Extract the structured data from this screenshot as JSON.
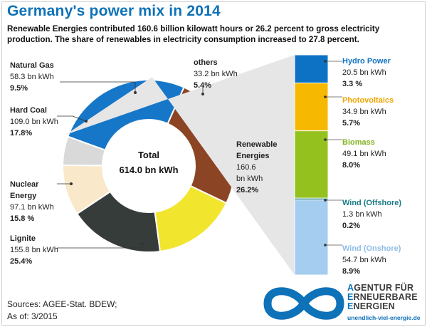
{
  "header": {
    "title": "Germany's power mix in 2014",
    "subtitle": "Renewable Energies contributed 160.6 billion kilowatt hours or 26.2 percent to gross electricity production. The share of renewables in electricity consumption increased to 27.8 percent."
  },
  "center": {
    "title": "Total",
    "value": "614.0 bn kWh"
  },
  "footer": {
    "sources": "Sources:  AGEE-Stat. BDEW;",
    "as_of": "As of: 3/2015"
  },
  "logo": {
    "line1_cap": "A",
    "line1": "GENTUR FÜR",
    "line2_cap": "E",
    "line2": "RNEUERBARE",
    "line3_cap": "E",
    "line3": "NERGIEN",
    "url": "unendlich-viel-energie.de"
  },
  "colors": {
    "title": "#0e72b8",
    "renewable": "#1677c9",
    "lignite": "#8b4424",
    "nuclear": "#f2e52e",
    "hard_coal": "#363c3a",
    "natural_gas": "#f9e8c9",
    "others": "#d9d9d9",
    "hydro": "#0e72c4",
    "pv": "#f6b800",
    "biomass": "#94c11e",
    "wind_off": "#1a7c87",
    "wind_on": "#a4cdef"
  },
  "chart_data": [
    {
      "type": "pie",
      "subtype": "donut",
      "unit": "bn kWh",
      "slices": [
        {
          "name": "Renewable Energies",
          "value": 160.6,
          "value_text": "160.6",
          "unit_text": "bn kWh",
          "percent": 26.2,
          "percent_text": "26.2%",
          "color": "#1677c9"
        },
        {
          "name": "Lignite",
          "value": 155.8,
          "value_text": "155.8 bn kWh",
          "percent": 25.4,
          "percent_text": "25.4%",
          "color": "#8b4424"
        },
        {
          "name": "Nuclear Energy",
          "value": 97.1,
          "value_text": "97.1 bn kWh",
          "percent": 15.8,
          "percent_text": "15.8 %",
          "color": "#f2e52e"
        },
        {
          "name": "Hard Coal",
          "value": 109.0,
          "value_text": "109.0 bn kWh",
          "percent": 17.8,
          "percent_text": "17.8%",
          "color": "#363c3a"
        },
        {
          "name": "Natural Gas",
          "value": 58.3,
          "value_text": "58.3 bn kWh",
          "percent": 9.5,
          "percent_text": "9.5%",
          "color": "#f9e8c9"
        },
        {
          "name": "others",
          "value": 33.2,
          "value_text": "33.2 bn kWh",
          "percent": 5.4,
          "percent_text": "5.4%",
          "color": "#d9d9d9"
        }
      ]
    },
    {
      "type": "bar",
      "subtype": "stacked-breakdown",
      "unit": "bn kWh",
      "segments": [
        {
          "name": "Hydro Power",
          "value": 20.5,
          "value_text": "20.5 bn kWh",
          "percent": 3.3,
          "percent_text": "3.3 %",
          "color": "#0e72c4",
          "label_color": "#0e72c4"
        },
        {
          "name": "Photovoltaics",
          "value": 34.9,
          "value_text": "34.9 bn kWh",
          "percent": 5.7,
          "percent_text": "5.7%",
          "color": "#f6b800",
          "label_color": "#f0a500"
        },
        {
          "name": "Biomass",
          "value": 49.1,
          "value_text": "49.1 bn kWh",
          "percent": 8.0,
          "percent_text": "8.0%",
          "color": "#94c11e",
          "label_color": "#7fb31c"
        },
        {
          "name": "Wind (Offshore)",
          "value": 1.3,
          "value_text": "1.3 bn kWh",
          "percent": 0.2,
          "percent_text": "0.2%",
          "color": "#1a7c87",
          "label_color": "#1a7c87"
        },
        {
          "name": "Wind (Onshore)",
          "value": 54.7,
          "value_text": "54.7 bn kWh",
          "percent": 8.9,
          "percent_text": "8.9%",
          "color": "#a4cdef",
          "label_color": "#8fbde6"
        }
      ]
    }
  ]
}
